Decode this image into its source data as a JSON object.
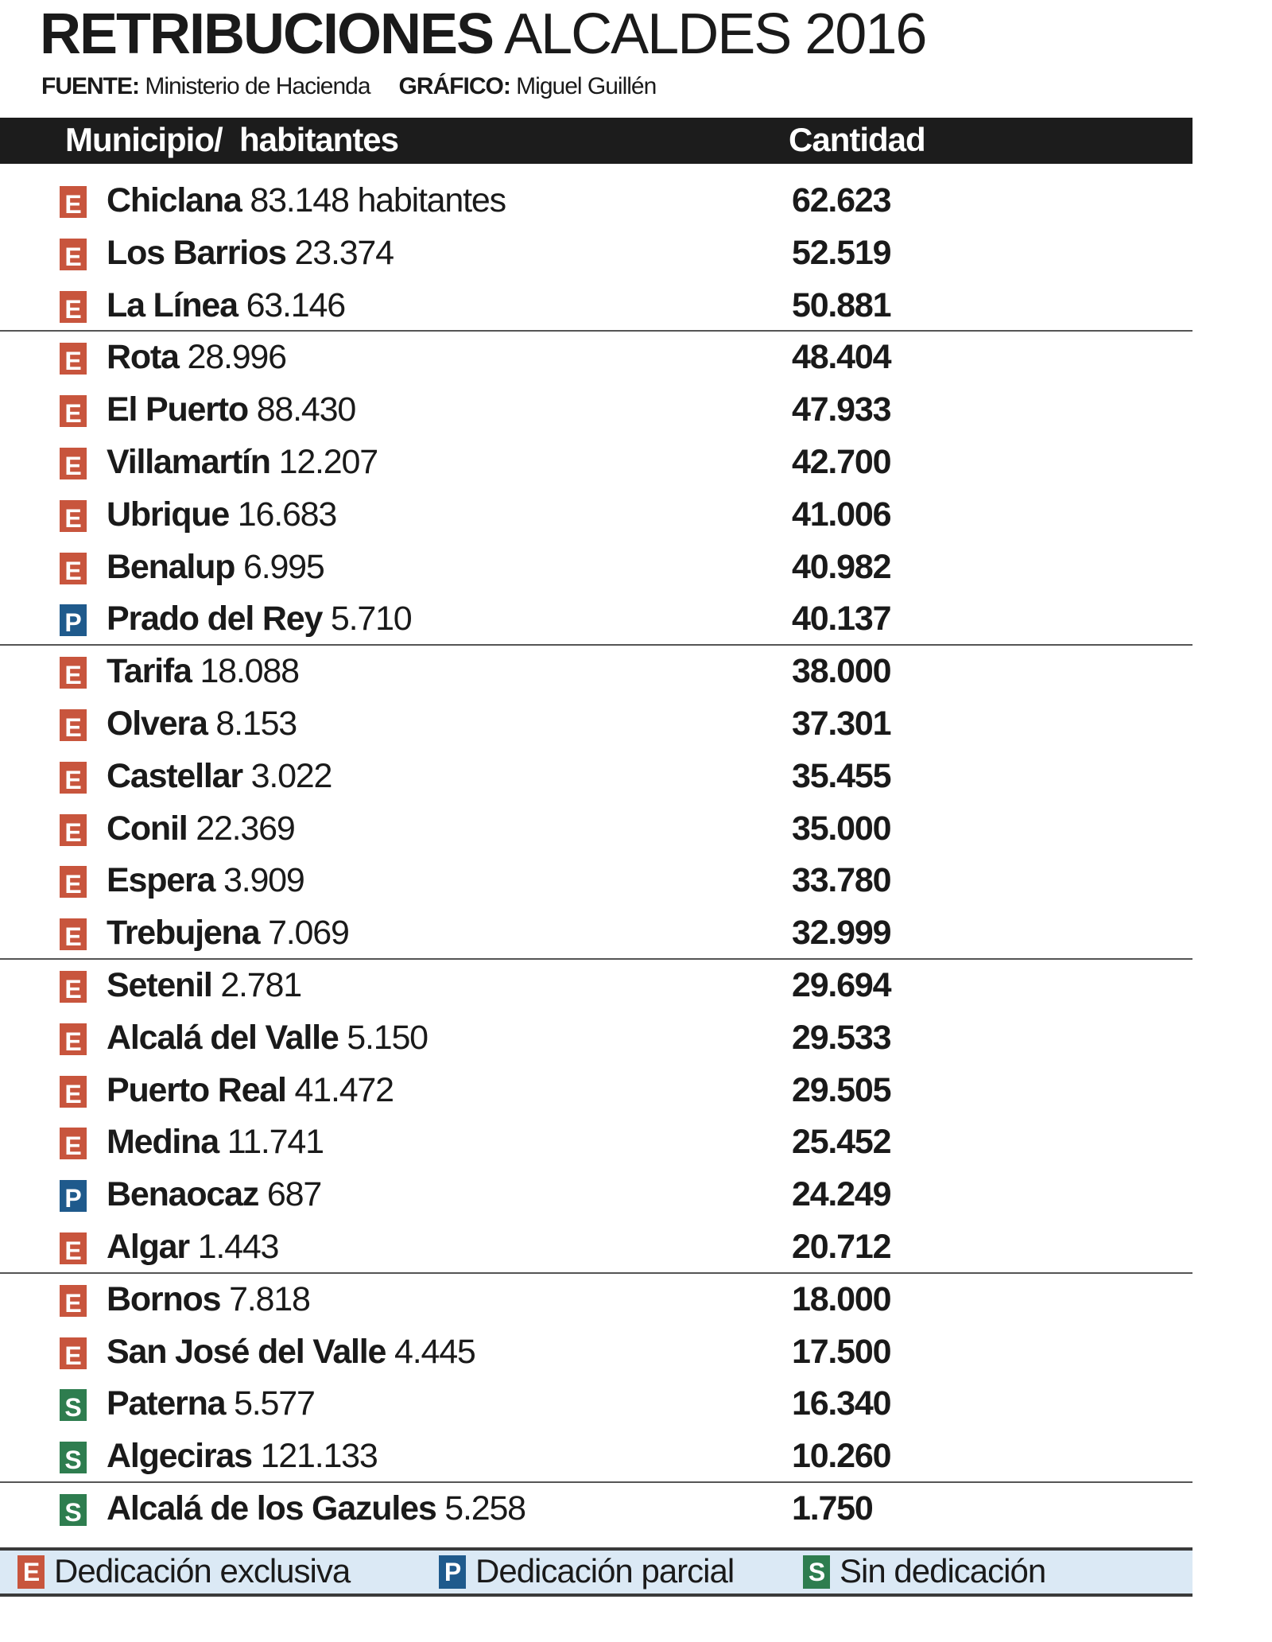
{
  "title": {
    "bold": "RETRIBUCIONES",
    "light": "ALCALDES 2016"
  },
  "source": {
    "fuente_label": "FUENTE:",
    "fuente": "Ministerio de Hacienda",
    "grafico_label": "GRÁFICO:",
    "grafico": "Miguel Guillén"
  },
  "table": {
    "headers": [
      "Municipio/  habitantes",
      "Cantidad"
    ],
    "rows": [
      {
        "type": "E",
        "name": "Chiclana",
        "pop": "83.148 habitantes",
        "amount": "62.623"
      },
      {
        "type": "E",
        "name": "Los Barrios",
        "pop": "23.374",
        "amount": "52.519"
      },
      {
        "type": "E",
        "name": "La Línea",
        "pop": "63.146",
        "amount": "50.881"
      },
      {
        "type": "E",
        "name": "Rota",
        "pop": "28.996",
        "amount": "48.404"
      },
      {
        "type": "E",
        "name": "El Puerto",
        "pop": "88.430",
        "amount": "47.933"
      },
      {
        "type": "E",
        "name": "Villamartín",
        "pop": "12.207",
        "amount": "42.700"
      },
      {
        "type": "E",
        "name": "Ubrique",
        "pop": "16.683",
        "amount": "41.006"
      },
      {
        "type": "E",
        "name": "Benalup",
        "pop": "6.995",
        "amount": "40.982"
      },
      {
        "type": "P",
        "name": "Prado del Rey",
        "pop": "5.710",
        "amount": "40.137"
      },
      {
        "type": "E",
        "name": "Tarifa",
        "pop": "18.088",
        "amount": "38.000"
      },
      {
        "type": "E",
        "name": "Olvera",
        "pop": "8.153",
        "amount": "37.301"
      },
      {
        "type": "E",
        "name": "Castellar",
        "pop": "3.022",
        "amount": "35.455"
      },
      {
        "type": "E",
        "name": "Conil",
        "pop": "22.369",
        "amount": "35.000"
      },
      {
        "type": "E",
        "name": "Espera",
        "pop": "3.909",
        "amount": "33.780"
      },
      {
        "type": "E",
        "name": "Trebujena",
        "pop": "7.069",
        "amount": "32.999"
      },
      {
        "type": "E",
        "name": "Setenil",
        "pop": "2.781",
        "amount": "29.694"
      },
      {
        "type": "E",
        "name": "Alcalá del Valle",
        "pop": "5.150",
        "amount": "29.533"
      },
      {
        "type": "E",
        "name": "Puerto Real",
        "pop": "41.472",
        "amount": "29.505"
      },
      {
        "type": "E",
        "name": "Medina",
        "pop": "11.741",
        "amount": "25.452"
      },
      {
        "type": "P",
        "name": "Benaocaz",
        "pop": "687",
        "amount": "24.249"
      },
      {
        "type": "E",
        "name": "Algar",
        "pop": "1.443",
        "amount": "20.712"
      },
      {
        "type": "E",
        "name": "Bornos",
        "pop": "7.818",
        "amount": "18.000"
      },
      {
        "type": "E",
        "name": "San José del Valle",
        "pop": "4.445",
        "amount": "17.500"
      },
      {
        "type": "S",
        "name": "Paterna",
        "pop": "5.577",
        "amount": "16.340"
      },
      {
        "type": "S",
        "name": "Algeciras",
        "pop": "121.133",
        "amount": "10.260"
      },
      {
        "type": "S",
        "name": "Alcalá de los Gazules",
        "pop": "5.258",
        "amount": "1.750"
      }
    ]
  },
  "legend": [
    {
      "type": "E",
      "label": "Dedicación exclusiva"
    },
    {
      "type": "P",
      "label": "Dedicación parcial"
    },
    {
      "type": "S",
      "label": "Sin dedicación"
    }
  ],
  "colors": {
    "E": "#c8553d",
    "P": "#1f5a8c",
    "S": "#2e7d4f",
    "header_bg": "#1c1c1c",
    "legend_bg": "#dbe9f5"
  }
}
